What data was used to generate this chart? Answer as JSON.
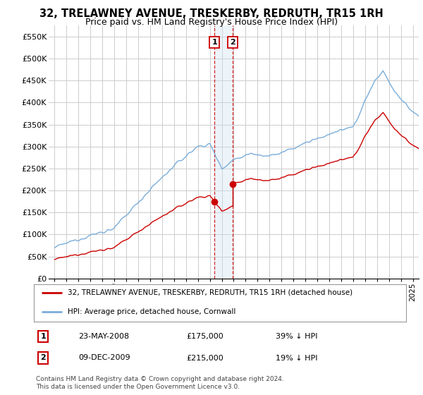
{
  "title": "32, TRELAWNEY AVENUE, TRESKERBY, REDRUTH, TR15 1RH",
  "subtitle": "Price paid vs. HM Land Registry's House Price Index (HPI)",
  "ylabel_ticks": [
    "£0",
    "£50K",
    "£100K",
    "£150K",
    "£200K",
    "£250K",
    "£300K",
    "£350K",
    "£400K",
    "£450K",
    "£500K",
    "£550K"
  ],
  "ytick_values": [
    0,
    50000,
    100000,
    150000,
    200000,
    250000,
    300000,
    350000,
    400000,
    450000,
    500000,
    550000
  ],
  "ylim": [
    0,
    575000
  ],
  "xlim_left": 1994.5,
  "xlim_right": 2025.5,
  "hpi_color": "#7aadda",
  "price_color": "#cc0000",
  "transaction1_date": 2008.38,
  "transaction1_price": 175000,
  "transaction2_date": 2009.92,
  "transaction2_price": 215000,
  "shade_color": "#cce0f0",
  "legend_label1": "32, TRELAWNEY AVENUE, TRESKERBY, REDRUTH, TR15 1RH (detached house)",
  "legend_label2": "HPI: Average price, detached house, Cornwall",
  "table_row1": [
    "1",
    "23-MAY-2008",
    "£175,000",
    "39% ↓ HPI"
  ],
  "table_row2": [
    "2",
    "09-DEC-2009",
    "£215,000",
    "19% ↓ HPI"
  ],
  "footnote": "Contains HM Land Registry data © Crown copyright and database right 2024.\nThis data is licensed under the Open Government Licence v3.0.",
  "bg_color": "#ffffff",
  "grid_color": "#cccccc",
  "title_fontsize": 10.5,
  "subtitle_fontsize": 9
}
